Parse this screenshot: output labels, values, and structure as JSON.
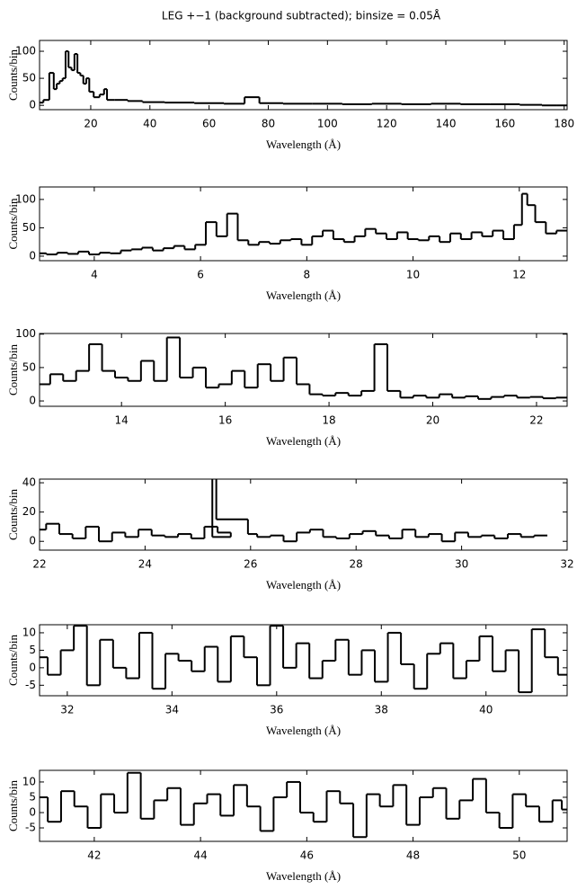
{
  "title": "LEG +−1 (background subtracted); binsize = 0.05Å",
  "chart_data": [
    {
      "type": "line",
      "step": true,
      "color": "#000000",
      "x_label": "Wavelength (Å)",
      "y_label": "Counts/bin",
      "xlim": [
        2.7,
        181
      ],
      "ylim": [
        -8,
        120
      ],
      "xticks": [
        20,
        40,
        60,
        80,
        100,
        120,
        140,
        160,
        180
      ],
      "yticks": [
        0,
        50,
        100
      ],
      "x": [
        3,
        5,
        7,
        8,
        9,
        10,
        11,
        12,
        13,
        14,
        15,
        16,
        17,
        18,
        19,
        20,
        22,
        24,
        25,
        26,
        30,
        35,
        40,
        50,
        60,
        70,
        74,
        80,
        90,
        100,
        110,
        120,
        130,
        140,
        150,
        160,
        170,
        175,
        180
      ],
      "values": [
        5,
        10,
        60,
        30,
        40,
        45,
        50,
        100,
        70,
        65,
        95,
        60,
        55,
        40,
        50,
        25,
        15,
        20,
        30,
        10,
        10,
        8,
        6,
        5,
        4,
        3,
        15,
        4,
        3,
        3,
        2,
        3,
        2,
        3,
        2,
        2,
        1,
        0,
        0
      ]
    },
    {
      "type": "line",
      "step": true,
      "color": "#000000",
      "x_label": "Wavelength (Å)",
      "y_label": "Counts/bin",
      "xlim": [
        2.97,
        12.9
      ],
      "ylim": [
        -8,
        122
      ],
      "xticks": [
        4,
        6,
        8,
        10,
        12
      ],
      "yticks": [
        0,
        50,
        100
      ],
      "x": [
        3.0,
        3.2,
        3.4,
        3.6,
        3.8,
        4.0,
        4.2,
        4.4,
        4.6,
        4.8,
        5.0,
        5.2,
        5.4,
        5.6,
        5.8,
        6.0,
        6.2,
        6.4,
        6.6,
        6.8,
        7.0,
        7.2,
        7.4,
        7.6,
        7.8,
        8.0,
        8.2,
        8.4,
        8.6,
        8.8,
        9.0,
        9.2,
        9.4,
        9.6,
        9.8,
        10.0,
        10.2,
        10.4,
        10.6,
        10.8,
        11.0,
        11.2,
        11.4,
        11.6,
        11.8,
        12.0,
        12.1,
        12.2,
        12.4,
        12.6,
        12.8
      ],
      "values": [
        5,
        3,
        6,
        4,
        8,
        3,
        6,
        5,
        10,
        12,
        15,
        10,
        14,
        18,
        12,
        20,
        60,
        35,
        75,
        28,
        20,
        25,
        22,
        28,
        30,
        20,
        35,
        45,
        30,
        25,
        35,
        48,
        40,
        30,
        42,
        30,
        28,
        35,
        25,
        40,
        30,
        42,
        35,
        45,
        30,
        55,
        110,
        90,
        60,
        40,
        45
      ]
    },
    {
      "type": "line",
      "step": true,
      "color": "#000000",
      "x_label": "Wavelength (Å)",
      "y_label": "Counts/bin",
      "xlim": [
        12.42,
        22.59
      ],
      "ylim": [
        -8,
        101
      ],
      "xticks": [
        14,
        16,
        18,
        20,
        22
      ],
      "yticks": [
        0,
        50,
        100
      ],
      "x": [
        12.5,
        12.75,
        13.0,
        13.25,
        13.5,
        13.75,
        14.0,
        14.25,
        14.5,
        14.75,
        15.0,
        15.25,
        15.5,
        15.75,
        16.0,
        16.25,
        16.5,
        16.75,
        17.0,
        17.25,
        17.5,
        17.75,
        18.0,
        18.25,
        18.5,
        18.75,
        19.0,
        19.25,
        19.5,
        19.75,
        20.0,
        20.25,
        20.5,
        20.75,
        21.0,
        21.25,
        21.5,
        21.75,
        22.0,
        22.25,
        22.5
      ],
      "values": [
        25,
        40,
        30,
        45,
        85,
        45,
        35,
        30,
        60,
        30,
        95,
        35,
        50,
        20,
        25,
        45,
        20,
        55,
        30,
        65,
        25,
        10,
        8,
        12,
        8,
        15,
        85,
        15,
        5,
        8,
        5,
        10,
        5,
        7,
        3,
        6,
        8,
        5,
        6,
        4,
        5
      ]
    },
    {
      "type": "line",
      "step": true,
      "color": "#000000",
      "x_label": "Wavelength (Å)",
      "y_label": "Counts/bin",
      "xlim": [
        22,
        32
      ],
      "ylim": [
        -6,
        42.5
      ],
      "xticks": [
        22,
        24,
        26,
        28,
        30,
        32
      ],
      "yticks": [
        0,
        20,
        40
      ],
      "x": [
        22.0,
        22.25,
        22.5,
        22.75,
        23.0,
        23.25,
        23.5,
        23.75,
        24.0,
        24.25,
        24.5,
        24.75,
        25.0,
        25.25,
        25.5,
        25.75,
        24.8,
        25.9,
        26.0,
        26.25,
        26.5,
        26.75,
        27.0,
        27.25,
        27.5,
        27.75,
        28.0,
        28.25,
        28.5,
        28.75,
        29.0,
        29.25,
        29.5,
        29.75,
        30.0,
        30.25,
        30.5,
        30.75,
        31.0,
        31.25,
        31.5
      ],
      "values": [
        8,
        12,
        5,
        2,
        10,
        0,
        6,
        3,
        8,
        4,
        3,
        5,
        2,
        10,
        6,
        3,
        44,
        15,
        5,
        3,
        4,
        0,
        6,
        8,
        3,
        2,
        5,
        7,
        4,
        2,
        8,
        3,
        5,
        0,
        6,
        3,
        4,
        2,
        5,
        3,
        4
      ]
    },
    {
      "type": "line",
      "step": true,
      "color": "#000000",
      "x_label": "Wavelength (Å)",
      "y_label": "Counts/bin",
      "xlim": [
        31.47,
        41.55
      ],
      "ylim": [
        -8,
        12.3
      ],
      "xticks": [
        32,
        34,
        36,
        38,
        40
      ],
      "yticks": [
        -5,
        0,
        5,
        10
      ],
      "x": [
        31.5,
        31.75,
        32.0,
        32.25,
        32.5,
        32.75,
        33.0,
        33.25,
        33.5,
        33.75,
        34.0,
        34.25,
        34.5,
        34.75,
        35.0,
        35.25,
        35.5,
        35.75,
        36.0,
        36.25,
        36.5,
        36.75,
        37.0,
        37.25,
        37.5,
        37.75,
        38.0,
        38.25,
        38.5,
        38.75,
        39.0,
        39.25,
        39.5,
        39.75,
        40.0,
        40.25,
        40.5,
        40.75,
        41.0,
        41.25,
        41.5
      ],
      "values": [
        3,
        -2,
        5,
        12,
        -5,
        8,
        0,
        -3,
        10,
        -6,
        4,
        2,
        -1,
        6,
        -4,
        9,
        3,
        -5,
        12,
        0,
        7,
        -3,
        2,
        8,
        -2,
        5,
        -4,
        10,
        1,
        -6,
        4,
        7,
        -3,
        2,
        9,
        -1,
        5,
        -7,
        11,
        3,
        -2
      ]
    },
    {
      "type": "line",
      "step": true,
      "color": "#000000",
      "x_label": "Wavelength (Å)",
      "y_label": "Counts/bin",
      "xlim": [
        40.97,
        50.9
      ],
      "ylim": [
        -9.4,
        13.8
      ],
      "xticks": [
        42,
        44,
        46,
        48,
        50
      ],
      "yticks": [
        -5,
        0,
        5,
        10
      ],
      "x": [
        41.0,
        41.25,
        41.5,
        41.75,
        42.0,
        42.25,
        42.5,
        42.75,
        43.0,
        43.25,
        43.5,
        43.75,
        44.0,
        44.25,
        44.5,
        44.75,
        45.0,
        45.25,
        45.5,
        45.75,
        46.0,
        46.25,
        46.5,
        46.75,
        47.0,
        47.25,
        47.5,
        47.75,
        48.0,
        48.25,
        48.5,
        48.75,
        49.0,
        49.25,
        49.5,
        49.75,
        50.0,
        50.25,
        50.5,
        50.75,
        50.85
      ],
      "values": [
        5,
        -3,
        7,
        2,
        -5,
        6,
        0,
        13,
        -2,
        4,
        8,
        -4,
        3,
        6,
        -1,
        9,
        2,
        -6,
        5,
        10,
        0,
        -3,
        7,
        3,
        -8,
        6,
        2,
        9,
        -4,
        5,
        8,
        -2,
        4,
        11,
        0,
        -5,
        6,
        2,
        -3,
        4,
        1
      ]
    }
  ]
}
